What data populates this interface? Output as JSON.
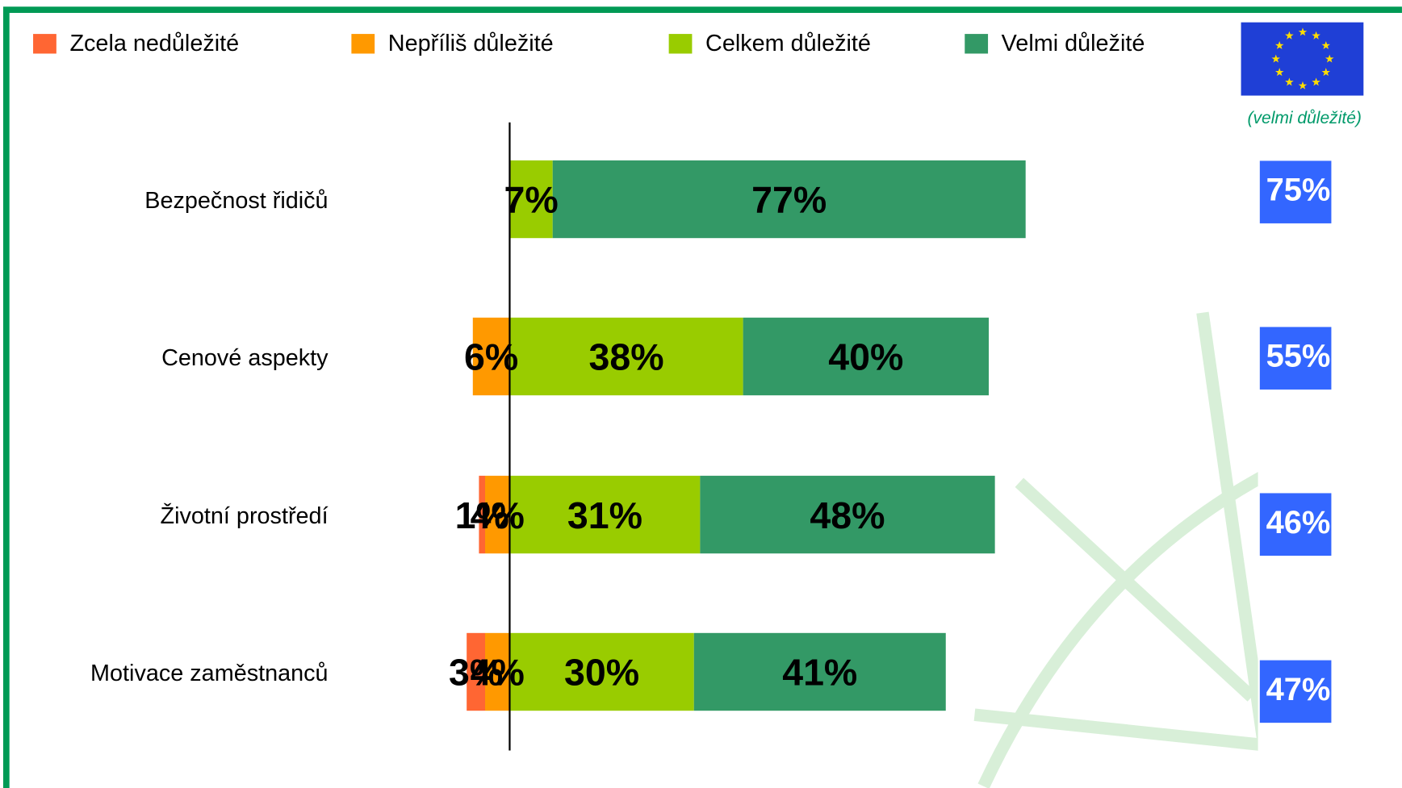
{
  "chart_data": {
    "type": "diverging-bar",
    "categories": [
      "Bezpečnost řidičů",
      "Cenové aspekty",
      "Životní prostředí",
      "Motivace zaměstnanců"
    ],
    "series": [
      {
        "name": "Zcela nedůležité",
        "color": "#ff6633",
        "side": "negative",
        "values": [
          null,
          null,
          1,
          3
        ],
        "value_labels": [
          null,
          null,
          "1%",
          "3%"
        ]
      },
      {
        "name": "Nepříliš důležité",
        "color": "#ff9900",
        "side": "negative",
        "values": [
          null,
          6,
          4,
          4
        ],
        "value_labels": [
          null,
          "6%",
          "4%",
          "4%"
        ]
      },
      {
        "name": "Celkem důležité",
        "color": "#99cc00",
        "side": "positive",
        "values": [
          7,
          38,
          31,
          30
        ],
        "value_labels": [
          "7%",
          "38%",
          "31%",
          "30%"
        ]
      },
      {
        "name": "Velmi důležité",
        "color": "#339966",
        "side": "positive",
        "values": [
          77,
          40,
          48,
          41
        ],
        "value_labels": [
          "77%",
          "40%",
          "48%",
          "41%"
        ]
      }
    ],
    "eu_note": "(velmi důležité)",
    "eu_color": "#3366ff",
    "eu_values": [
      75,
      55,
      46,
      47
    ],
    "eu_value_labels": [
      "75%",
      "55%",
      "46%",
      "47%"
    ]
  }
}
